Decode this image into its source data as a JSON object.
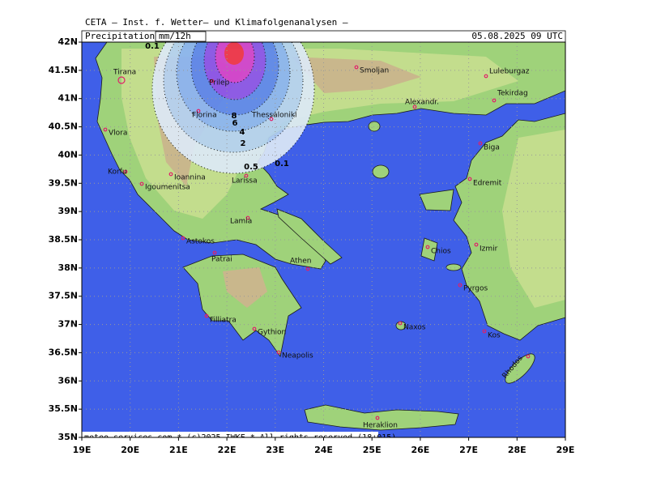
{
  "header": {
    "title": "CETA — Inst. f. Wetter— und Klimafolgenanalysen —",
    "variable": "Precipitation",
    "unit": "mm/12h",
    "valid_time": "05.08.2025 09 UTC"
  },
  "map": {
    "lat_labels": [
      "42N",
      "41.5N",
      "41N",
      "40.5N",
      "40N",
      "39.5N",
      "39N",
      "38.5N",
      "38N",
      "37.5N",
      "37N",
      "36.5N",
      "36N",
      "35.5N",
      "35N"
    ],
    "lon_labels": [
      "19E",
      "20E",
      "21E",
      "22E",
      "23E",
      "24E",
      "25E",
      "26E",
      "27E",
      "28E",
      "29E"
    ],
    "cities": [
      "Tirana",
      "Vlora",
      "Korfu",
      "Ioannina",
      "Igoumenitsa",
      "Prilep",
      "Florina",
      "Thessaloniki",
      "Larissa",
      "Lamia",
      "Astokos",
      "Patrai",
      "Athen",
      "Filliatra",
      "Gythion",
      "Neapolis",
      "Smoljan",
      "Alexandr.",
      "Luleburgaz",
      "Tekirdag",
      "Biga",
      "Edremit",
      "Chios",
      "Izmir",
      "Pyrgos",
      "Naxos",
      "Kos",
      "Rhodos",
      "Heraklion"
    ],
    "contour_labels": [
      "0.1",
      "8",
      "6",
      "4",
      "2",
      "0.5",
      "0.1"
    ]
  },
  "footer": "meteo-services.com * (c)2025 IWKF * All rights reserved (18+015)"
}
